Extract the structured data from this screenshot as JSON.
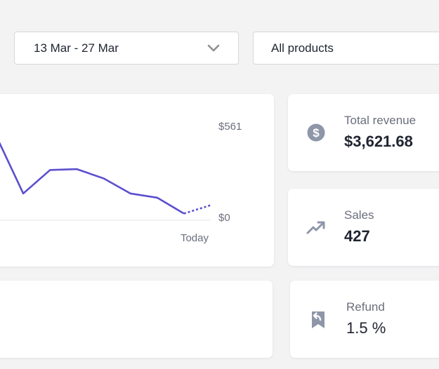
{
  "filters": {
    "date_range": "13 Mar - 27 Mar",
    "product": "All products"
  },
  "chart_data": {
    "type": "line",
    "series": [
      {
        "values": [
          500,
          160,
          300,
          305,
          250,
          160,
          135,
          40,
          90
        ]
      }
    ],
    "projected_from_index": 7,
    "ylim": [
      0,
      561
    ],
    "y_ticks": [
      "$561",
      "$0"
    ],
    "x_label": "Today",
    "line_color": "#5b4fcf",
    "grid": false
  },
  "stats": {
    "revenue": {
      "label": "Total revenue",
      "value": "$3,621.68",
      "icon": "dollar-circle-icon"
    },
    "sales": {
      "label": "Sales",
      "value": "427",
      "icon": "trending-up-icon"
    },
    "refund": {
      "label": "Refund",
      "value": "1.5 %",
      "icon": "refund-bookmark-icon"
    }
  },
  "colors": {
    "accent": "#5b4fcf",
    "icon": "#8e96a8",
    "background": "#f3f3f4"
  }
}
